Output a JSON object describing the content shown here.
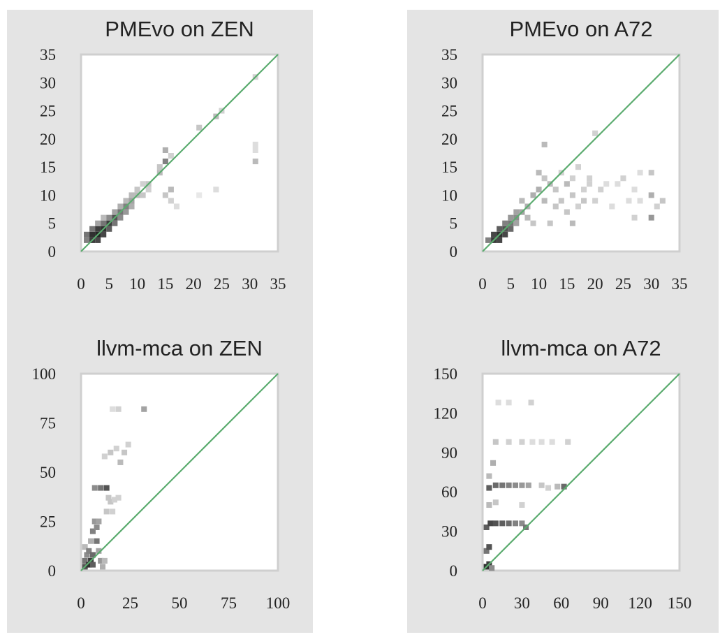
{
  "chart_data": [
    {
      "type": "heatmap",
      "title": "PMEvo on ZEN",
      "xlim": [
        0,
        35
      ],
      "ylim": [
        0,
        35
      ],
      "xticks": [
        "0",
        "5",
        "10",
        "15",
        "20",
        "25",
        "30",
        "35"
      ],
      "yticks": [
        "0",
        "5",
        "10",
        "15",
        "20",
        "25",
        "30",
        "35"
      ],
      "diagonal_color": "#5aab6e",
      "cells": [
        [
          1,
          2,
          0.55
        ],
        [
          1,
          3,
          0.6
        ],
        [
          2,
          2,
          0.85
        ],
        [
          2,
          3,
          0.9
        ],
        [
          2,
          4,
          0.6
        ],
        [
          3,
          2,
          0.8
        ],
        [
          3,
          3,
          0.95
        ],
        [
          3,
          4,
          0.85
        ],
        [
          3,
          5,
          0.4
        ],
        [
          4,
          3,
          0.8
        ],
        [
          4,
          4,
          0.9
        ],
        [
          4,
          5,
          0.6
        ],
        [
          4,
          6,
          0.3
        ],
        [
          5,
          4,
          0.7
        ],
        [
          5,
          5,
          0.85
        ],
        [
          5,
          6,
          0.5
        ],
        [
          6,
          5,
          0.6
        ],
        [
          6,
          6,
          0.75
        ],
        [
          6,
          7,
          0.4
        ],
        [
          7,
          6,
          0.5
        ],
        [
          7,
          7,
          0.6
        ],
        [
          7,
          8,
          0.35
        ],
        [
          8,
          7,
          0.45
        ],
        [
          8,
          8,
          0.55
        ],
        [
          8,
          9,
          0.3
        ],
        [
          9,
          8,
          0.35
        ],
        [
          9,
          9,
          0.4
        ],
        [
          9,
          10,
          0.3
        ],
        [
          10,
          10,
          0.3
        ],
        [
          10,
          11,
          0.25
        ],
        [
          11,
          10,
          0.25
        ],
        [
          11,
          12,
          0.2
        ],
        [
          12,
          11,
          0.2
        ],
        [
          12,
          12,
          0.25
        ],
        [
          14,
          14,
          0.3
        ],
        [
          14,
          15,
          0.25
        ],
        [
          15,
          16,
          0.55
        ],
        [
          15,
          18,
          0.35
        ],
        [
          16,
          17,
          0.2
        ],
        [
          15,
          10,
          0.25
        ],
        [
          16,
          11,
          0.3
        ],
        [
          16,
          9,
          0.2
        ],
        [
          17,
          8,
          0.15
        ],
        [
          21,
          10,
          0.1
        ],
        [
          21,
          22,
          0.25
        ],
        [
          24,
          24,
          0.3
        ],
        [
          25,
          25,
          0.2
        ],
        [
          24,
          11,
          0.15
        ],
        [
          31,
          31,
          0.2
        ],
        [
          31,
          19,
          0.15
        ],
        [
          31,
          18,
          0.15
        ],
        [
          31,
          16,
          0.3
        ]
      ]
    },
    {
      "type": "heatmap",
      "title": "PMEvo on A72",
      "xlim": [
        0,
        35
      ],
      "ylim": [
        0,
        35
      ],
      "xticks": [
        "0",
        "5",
        "10",
        "15",
        "20",
        "25",
        "30",
        "35"
      ],
      "yticks": [
        "0",
        "5",
        "10",
        "15",
        "20",
        "25",
        "30",
        "35"
      ],
      "diagonal_color": "#5aab6e",
      "cells": [
        [
          1,
          2,
          0.55
        ],
        [
          2,
          2,
          0.85
        ],
        [
          2,
          3,
          0.8
        ],
        [
          3,
          2,
          0.8
        ],
        [
          3,
          3,
          0.9
        ],
        [
          3,
          4,
          0.7
        ],
        [
          4,
          3,
          0.8
        ],
        [
          4,
          4,
          0.75
        ],
        [
          4,
          5,
          0.55
        ],
        [
          5,
          4,
          0.65
        ],
        [
          5,
          5,
          0.6
        ],
        [
          5,
          6,
          0.45
        ],
        [
          6,
          6,
          0.5
        ],
        [
          6,
          7,
          0.4
        ],
        [
          6,
          5,
          0.4
        ],
        [
          7,
          7,
          0.4
        ],
        [
          7,
          9,
          0.3
        ],
        [
          8,
          8,
          0.35
        ],
        [
          8,
          6,
          0.3
        ],
        [
          9,
          10,
          0.35
        ],
        [
          9,
          5,
          0.25
        ],
        [
          10,
          11,
          0.35
        ],
        [
          10,
          14,
          0.3
        ],
        [
          11,
          9,
          0.3
        ],
        [
          11,
          13,
          0.25
        ],
        [
          11,
          19,
          0.3
        ],
        [
          12,
          12,
          0.3
        ],
        [
          12,
          5,
          0.25
        ],
        [
          13,
          11,
          0.25
        ],
        [
          13,
          8,
          0.25
        ],
        [
          14,
          14,
          0.2
        ],
        [
          14,
          9,
          0.25
        ],
        [
          15,
          12,
          0.3
        ],
        [
          15,
          7,
          0.25
        ],
        [
          16,
          13,
          0.2
        ],
        [
          16,
          10,
          0.25
        ],
        [
          16,
          5,
          0.3
        ],
        [
          17,
          8,
          0.2
        ],
        [
          17,
          15,
          0.2
        ],
        [
          18,
          11,
          0.2
        ],
        [
          18,
          9,
          0.25
        ],
        [
          19,
          13,
          0.2
        ],
        [
          19,
          12,
          0.2
        ],
        [
          20,
          21,
          0.2
        ],
        [
          20,
          9,
          0.2
        ],
        [
          21,
          11,
          0.2
        ],
        [
          22,
          12,
          0.15
        ],
        [
          23,
          8,
          0.15
        ],
        [
          24,
          12,
          0.15
        ],
        [
          25,
          13,
          0.2
        ],
        [
          26,
          9,
          0.15
        ],
        [
          27,
          11,
          0.15
        ],
        [
          27,
          6,
          0.2
        ],
        [
          28,
          9,
          0.15
        ],
        [
          28,
          14,
          0.15
        ],
        [
          30,
          6,
          0.45
        ],
        [
          30,
          10,
          0.35
        ],
        [
          30,
          14,
          0.25
        ],
        [
          31,
          8,
          0.2
        ],
        [
          32,
          9,
          0.25
        ]
      ]
    },
    {
      "type": "heatmap",
      "title": "llvm-mca on ZEN",
      "xlim": [
        0,
        100
      ],
      "ylim": [
        0,
        100
      ],
      "xticks": [
        "0",
        "25",
        "50",
        "75",
        "100"
      ],
      "yticks": [
        "0",
        "25",
        "50",
        "75",
        "100"
      ],
      "diagonal_color": "#5aab6e",
      "cells": [
        [
          2,
          2,
          0.75
        ],
        [
          2,
          5,
          0.6
        ],
        [
          3,
          8,
          0.5
        ],
        [
          2,
          12,
          0.3
        ],
        [
          4,
          3,
          0.9
        ],
        [
          4,
          10,
          0.55
        ],
        [
          5,
          5,
          0.85
        ],
        [
          5,
          15,
          0.35
        ],
        [
          6,
          3,
          0.7
        ],
        [
          6,
          8,
          0.65
        ],
        [
          6,
          20,
          0.55
        ],
        [
          7,
          25,
          0.45
        ],
        [
          8,
          15,
          0.6
        ],
        [
          8,
          22,
          0.5
        ],
        [
          9,
          25,
          0.4
        ],
        [
          9,
          10,
          0.4
        ],
        [
          10,
          5,
          0.45
        ],
        [
          11,
          2,
          0.35
        ],
        [
          12,
          5,
          0.3
        ],
        [
          7,
          42,
          0.5
        ],
        [
          10,
          42,
          0.6
        ],
        [
          13,
          42,
          0.75
        ],
        [
          15,
          35,
          0.25
        ],
        [
          16,
          30,
          0.2
        ],
        [
          17,
          36,
          0.2
        ],
        [
          19,
          37,
          0.2
        ],
        [
          12,
          58,
          0.2
        ],
        [
          15,
          60,
          0.25
        ],
        [
          18,
          62,
          0.2
        ],
        [
          20,
          55,
          0.3
        ],
        [
          22,
          60,
          0.25
        ],
        [
          24,
          64,
          0.2
        ],
        [
          16,
          82,
          0.15
        ],
        [
          19,
          82,
          0.2
        ],
        [
          32,
          82,
          0.4
        ],
        [
          14,
          37,
          0.25
        ],
        [
          13,
          30,
          0.25
        ]
      ]
    },
    {
      "type": "heatmap",
      "title": "llvm-mca on A72",
      "xlim": [
        0,
        150
      ],
      "ylim": [
        0,
        150
      ],
      "xticks": [
        "0",
        "30",
        "60",
        "90",
        "120",
        "150"
      ],
      "yticks": [
        "0",
        "30",
        "60",
        "90",
        "120",
        "150"
      ],
      "diagonal_color": "#5aab6e",
      "cells": [
        [
          3,
          3,
          0.9
        ],
        [
          5,
          5,
          0.85
        ],
        [
          7,
          2,
          0.5
        ],
        [
          3,
          15,
          0.6
        ],
        [
          5,
          18,
          0.75
        ],
        [
          3,
          33,
          0.7
        ],
        [
          6,
          36,
          0.8
        ],
        [
          10,
          36,
          0.75
        ],
        [
          15,
          36,
          0.7
        ],
        [
          20,
          36,
          0.65
        ],
        [
          25,
          36,
          0.55
        ],
        [
          30,
          36,
          0.5
        ],
        [
          33,
          33,
          0.6
        ],
        [
          5,
          50,
          0.3
        ],
        [
          10,
          52,
          0.25
        ],
        [
          30,
          50,
          0.2
        ],
        [
          5,
          63,
          0.7
        ],
        [
          10,
          65,
          0.65
        ],
        [
          15,
          65,
          0.6
        ],
        [
          20,
          65,
          0.55
        ],
        [
          25,
          65,
          0.5
        ],
        [
          30,
          65,
          0.45
        ],
        [
          35,
          65,
          0.4
        ],
        [
          45,
          65,
          0.25
        ],
        [
          50,
          63,
          0.2
        ],
        [
          57,
          64,
          0.3
        ],
        [
          62,
          64,
          0.65
        ],
        [
          5,
          72,
          0.3
        ],
        [
          8,
          82,
          0.35
        ],
        [
          10,
          98,
          0.25
        ],
        [
          20,
          98,
          0.2
        ],
        [
          30,
          98,
          0.2
        ],
        [
          38,
          98,
          0.15
        ],
        [
          45,
          98,
          0.15
        ],
        [
          53,
          98,
          0.15
        ],
        [
          65,
          98,
          0.2
        ],
        [
          12,
          128,
          0.15
        ],
        [
          20,
          128,
          0.15
        ],
        [
          37,
          128,
          0.2
        ]
      ]
    }
  ]
}
